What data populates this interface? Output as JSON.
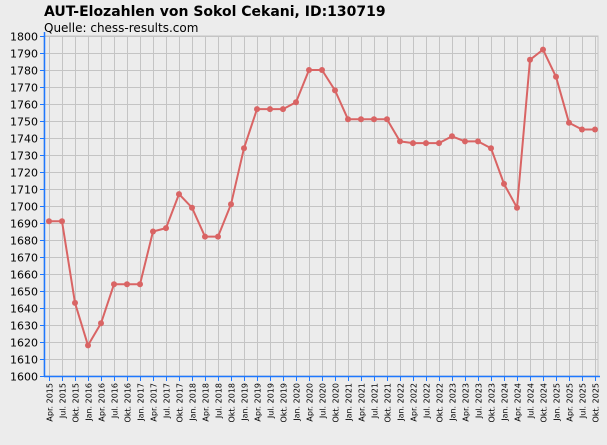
{
  "chart_data": {
    "type": "line",
    "title": "AUT-Elozahlen von Sokol Cekani, ID:130719",
    "subtitle": "Quelle: chess-results.com",
    "ylim": [
      1600,
      1800
    ],
    "yticks": [
      1600,
      1610,
      1620,
      1630,
      1640,
      1650,
      1660,
      1670,
      1680,
      1690,
      1700,
      1710,
      1720,
      1730,
      1740,
      1750,
      1760,
      1770,
      1780,
      1790,
      1800
    ],
    "grid": true,
    "categories": [
      "Apr. 2015",
      "Jul. 2015",
      "Okt. 2015",
      "Jan. 2016",
      "Apr. 2016",
      "Jul. 2016",
      "Okt. 2016",
      "Jan. 2017",
      "Apr. 2017",
      "Jul. 2017",
      "Okt. 2017",
      "Jan. 2018",
      "Apr. 2018",
      "Jul. 2018",
      "Okt. 2018",
      "Jan. 2019",
      "Apr. 2019",
      "Jul. 2019",
      "Okt. 2019",
      "Jan. 2020",
      "Apr. 2020",
      "Jul. 2020",
      "Okt. 2020",
      "Jan. 2021",
      "Apr. 2021",
      "Jul. 2021",
      "Okt. 2021",
      "Jan. 2022",
      "Apr. 2022",
      "Jul. 2022",
      "Okt. 2022",
      "Jan. 2023",
      "Apr. 2023",
      "Jul. 2023",
      "Okt. 2023",
      "Jan. 2024",
      "Apr. 2024",
      "Jul. 2024",
      "Okt. 2024",
      "Jan. 2025",
      "Apr. 2025",
      "Jul. 2025",
      "Okt. 2025"
    ],
    "series": [
      {
        "values": [
          1691,
          1691,
          1643,
          1618,
          1631,
          1654,
          1654,
          1654,
          1685,
          1687,
          1707,
          1699,
          1682,
          1682,
          1701,
          1734,
          1757,
          1757,
          1757,
          1761,
          1780,
          1780,
          1768,
          1751,
          1751,
          1751,
          1751,
          1738,
          1737,
          1737,
          1737,
          1741,
          1738,
          1738,
          1734,
          1713,
          1699,
          1786,
          1792,
          1776,
          1749,
          1745,
          1745
        ],
        "color": "#d96464"
      }
    ],
    "colors": {
      "background": "#ececec",
      "plot_background": "#ececec",
      "grid": "#c4c4c4",
      "axis": "#1e78ff"
    }
  }
}
